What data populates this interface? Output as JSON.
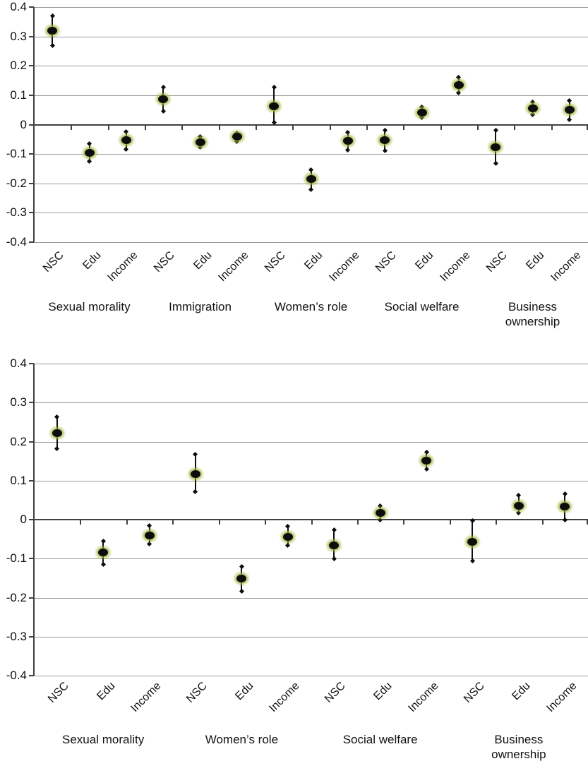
{
  "figure": {
    "background": "#ffffff",
    "description": "Two stacked coefficient dot plots with error bars"
  },
  "colors": {
    "marker": "#0d0d0d",
    "marker_halo": "#a4b638",
    "gridline": "#9a9a9a",
    "zero_axis": "#404040",
    "text": "#111111"
  },
  "chart_data": [
    {
      "type": "scatter",
      "title": "",
      "xlabel": "",
      "ylabel": "",
      "ylim": [
        -0.4,
        0.4
      ],
      "grid": true,
      "legend": false,
      "error_bars": true,
      "ytick_labels": [
        "0.4",
        "0.3",
        "0.2",
        "0.1",
        "0",
        "-0.1",
        "-0.2",
        "-0.3",
        "-0.4"
      ],
      "ytick_values": [
        0.4,
        0.3,
        0.2,
        0.1,
        0,
        -0.1,
        -0.2,
        -0.3,
        -0.4
      ],
      "groups": [
        {
          "label": "Sexual morality",
          "points": [
            {
              "x": "NSC",
              "y": 0.32,
              "lo": 0.27,
              "hi": 0.37
            },
            {
              "x": "Edu",
              "y": -0.095,
              "lo": -0.125,
              "hi": -0.065
            },
            {
              "x": "Income",
              "y": -0.052,
              "lo": -0.085,
              "hi": -0.025
            }
          ]
        },
        {
          "label": "Immigration",
          "points": [
            {
              "x": "NSC",
              "y": 0.087,
              "lo": 0.045,
              "hi": 0.127
            },
            {
              "x": "Edu",
              "y": -0.06,
              "lo": -0.078,
              "hi": -0.042
            },
            {
              "x": "Income",
              "y": -0.041,
              "lo": -0.058,
              "hi": -0.028
            }
          ]
        },
        {
          "label": "Women’s role",
          "points": [
            {
              "x": "NSC",
              "y": 0.063,
              "lo": 0.007,
              "hi": 0.128
            },
            {
              "x": "Edu",
              "y": -0.185,
              "lo": -0.22,
              "hi": -0.154
            },
            {
              "x": "Income",
              "y": -0.055,
              "lo": -0.087,
              "hi": -0.026
            }
          ]
        },
        {
          "label": "Social welfare",
          "points": [
            {
              "x": "NSC",
              "y": -0.052,
              "lo": -0.088,
              "hi": -0.019
            },
            {
              "x": "Edu",
              "y": 0.042,
              "lo": 0.024,
              "hi": 0.06
            },
            {
              "x": "Income",
              "y": 0.135,
              "lo": 0.108,
              "hi": 0.161
            }
          ]
        },
        {
          "label": "Business ownership",
          "points": [
            {
              "x": "NSC",
              "y": -0.078,
              "lo": -0.133,
              "hi": -0.019
            },
            {
              "x": "Edu",
              "y": 0.055,
              "lo": 0.034,
              "hi": 0.077
            },
            {
              "x": "Income",
              "y": 0.05,
              "lo": 0.017,
              "hi": 0.082
            }
          ]
        }
      ]
    },
    {
      "type": "scatter",
      "title": "",
      "xlabel": "",
      "ylabel": "",
      "ylim": [
        -0.4,
        0.4
      ],
      "grid": true,
      "legend": false,
      "error_bars": true,
      "ytick_labels": [
        "0.4",
        "0.3",
        "0.2",
        "0.1",
        "0",
        "-0.1",
        "-0.2",
        "-0.3",
        "-0.4"
      ],
      "ytick_values": [
        0.4,
        0.3,
        0.2,
        0.1,
        0,
        -0.1,
        -0.2,
        -0.3,
        -0.4
      ],
      "groups": [
        {
          "label": "Sexual morality",
          "points": [
            {
              "x": "NSC",
              "y": 0.222,
              "lo": 0.182,
              "hi": 0.264
            },
            {
              "x": "Edu",
              "y": -0.084,
              "lo": -0.115,
              "hi": -0.055
            },
            {
              "x": "Income",
              "y": -0.04,
              "lo": -0.062,
              "hi": -0.016
            }
          ]
        },
        {
          "label": "Women’s role",
          "points": [
            {
              "x": "NSC",
              "y": 0.116,
              "lo": 0.071,
              "hi": 0.168
            },
            {
              "x": "Edu",
              "y": -0.152,
              "lo": -0.183,
              "hi": -0.12
            },
            {
              "x": "Income",
              "y": -0.045,
              "lo": -0.066,
              "hi": -0.018
            }
          ]
        },
        {
          "label": "Social welfare",
          "points": [
            {
              "x": "NSC",
              "y": -0.066,
              "lo": -0.101,
              "hi": -0.026
            },
            {
              "x": "Edu",
              "y": 0.018,
              "lo": 0.0,
              "hi": 0.036
            },
            {
              "x": "Income",
              "y": 0.152,
              "lo": 0.13,
              "hi": 0.172
            }
          ]
        },
        {
          "label": "Business ownership",
          "points": [
            {
              "x": "NSC",
              "y": -0.057,
              "lo": -0.106,
              "hi": -0.003
            },
            {
              "x": "Edu",
              "y": 0.036,
              "lo": 0.018,
              "hi": 0.063
            },
            {
              "x": "Income",
              "y": 0.034,
              "lo": 0.0,
              "hi": 0.066
            }
          ]
        }
      ]
    }
  ]
}
